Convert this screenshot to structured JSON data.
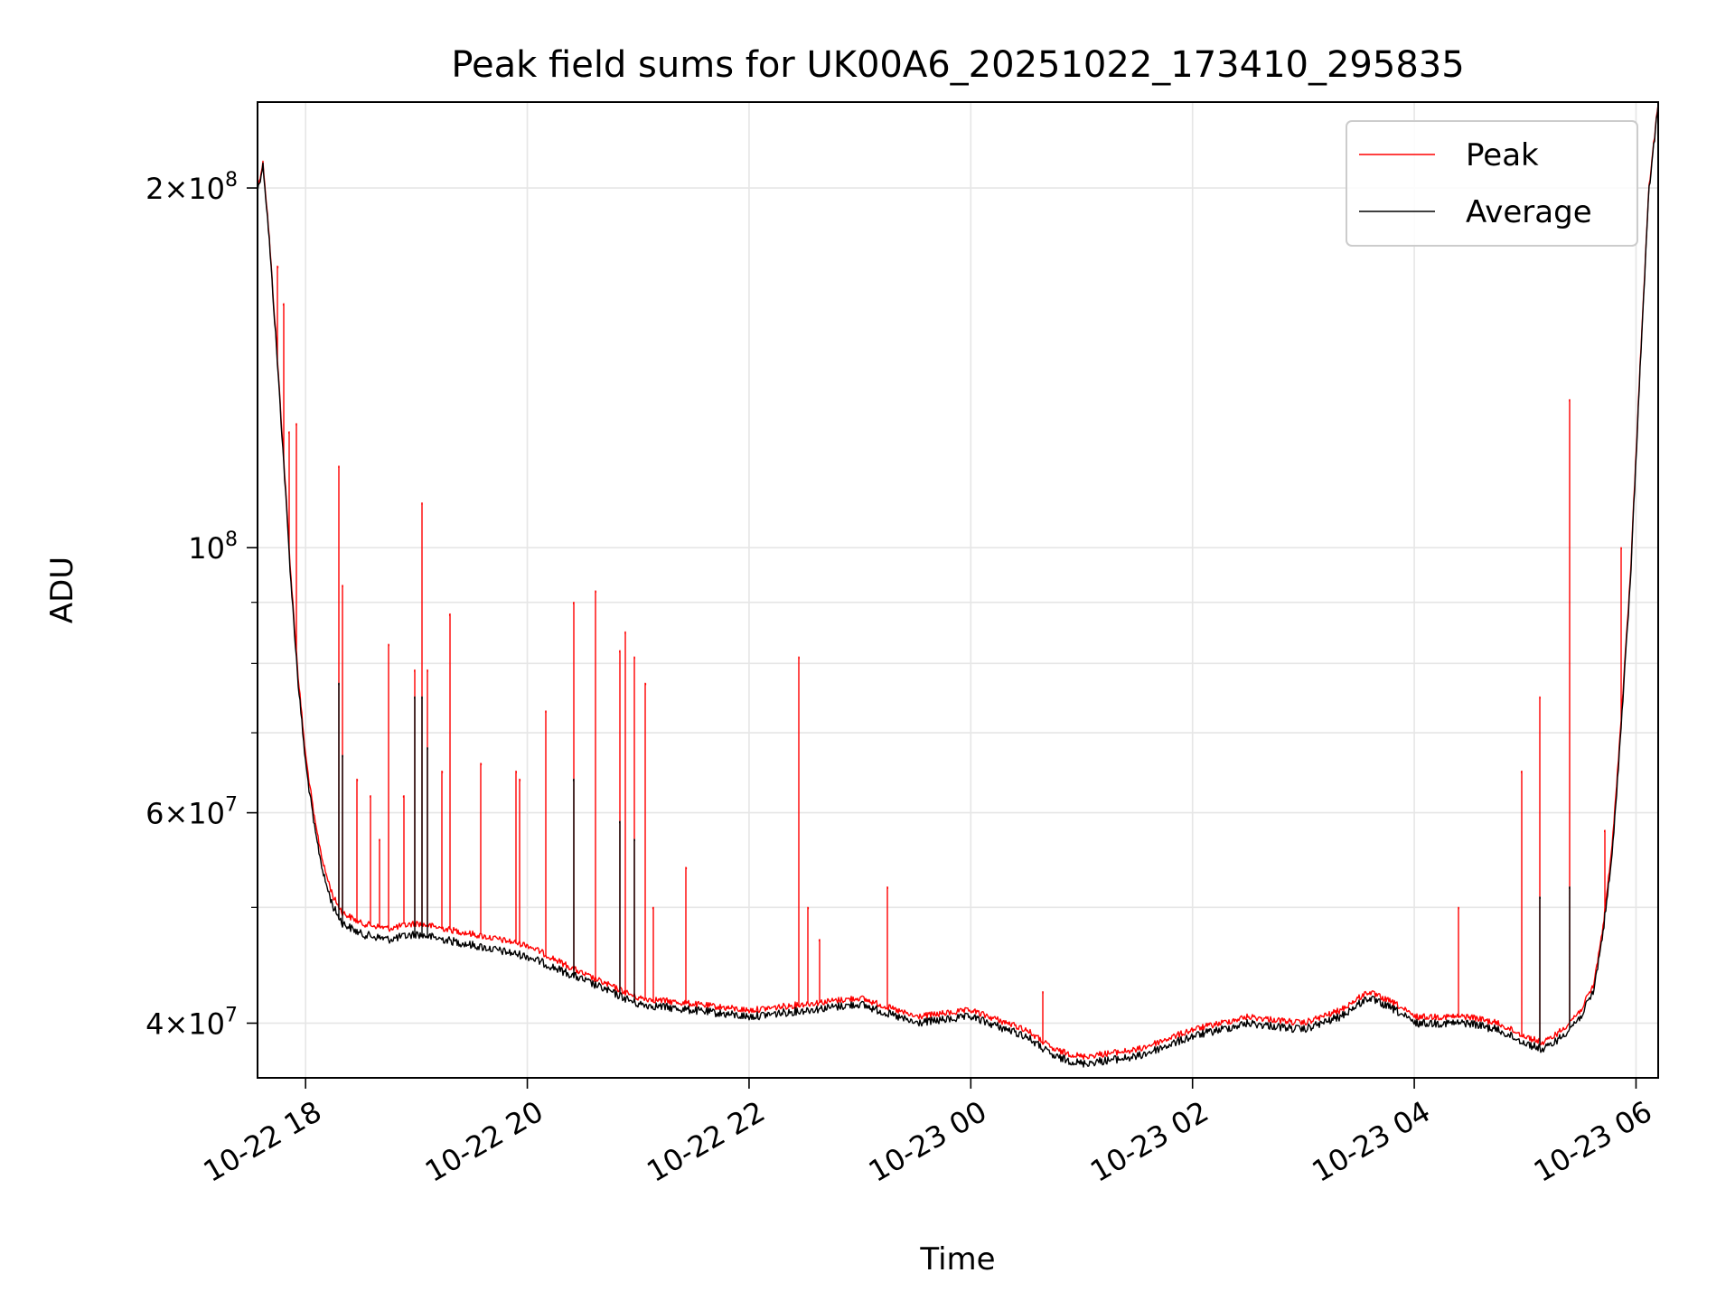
{
  "chart_data": {
    "type": "line",
    "title": "Peak field sums for UK00A6_20251022_173410_295835",
    "xlabel": "Time",
    "ylabel": "ADU",
    "y_scale": "log",
    "x_range": [
      "2025-10-22 17:34",
      "2025-10-23 06:12"
    ],
    "ylim": [
      36000000,
      236000000
    ],
    "x_ticks": [
      {
        "value": "2025-10-22 18:00",
        "label": "10-22 18"
      },
      {
        "value": "2025-10-22 20:00",
        "label": "10-22 20"
      },
      {
        "value": "2025-10-22 22:00",
        "label": "10-22 22"
      },
      {
        "value": "2025-10-23 00:00",
        "label": "10-23 00"
      },
      {
        "value": "2025-10-23 02:00",
        "label": "10-23 02"
      },
      {
        "value": "2025-10-23 04:00",
        "label": "10-23 04"
      },
      {
        "value": "2025-10-23 06:00",
        "label": "10-23 06"
      }
    ],
    "y_ticks": [
      {
        "value": 40000000,
        "mantissa": "4",
        "exp": "7"
      },
      {
        "value": 60000000,
        "mantissa": "6",
        "exp": "7"
      },
      {
        "value": 100000000,
        "mantissa": "",
        "exp": "8"
      },
      {
        "value": 200000000,
        "mantissa": "2",
        "exp": "8"
      }
    ],
    "y_minor_ticks": [
      50000000,
      70000000,
      80000000,
      90000000
    ],
    "grid": true,
    "legend_position": "top-right",
    "series": [
      {
        "name": "Peak",
        "color": "#ff0000",
        "x": [
          "2025-10-22 17:34",
          "2025-10-22 17:37",
          "2025-10-22 17:40",
          "2025-10-22 17:44",
          "2025-10-22 17:48",
          "2025-10-22 17:52",
          "2025-10-22 17:56",
          "2025-10-22 18:00",
          "2025-10-22 18:05",
          "2025-10-22 18:10",
          "2025-10-22 18:15",
          "2025-10-22 18:20",
          "2025-10-22 18:30",
          "2025-10-22 18:45",
          "2025-10-22 19:00",
          "2025-10-22 19:30",
          "2025-10-22 20:00",
          "2025-10-22 20:30",
          "2025-10-22 21:00",
          "2025-10-22 21:30",
          "2025-10-22 22:00",
          "2025-10-22 22:30",
          "2025-10-22 23:00",
          "2025-10-22 23:30",
          "2025-10-23 00:00",
          "2025-10-23 00:30",
          "2025-10-23 00:45",
          "2025-10-23 01:00",
          "2025-10-23 01:30",
          "2025-10-23 02:00",
          "2025-10-23 02:30",
          "2025-10-23 03:00",
          "2025-10-23 03:20",
          "2025-10-23 03:35",
          "2025-10-23 03:50",
          "2025-10-23 04:00",
          "2025-10-23 04:30",
          "2025-10-23 04:45",
          "2025-10-23 05:00",
          "2025-10-23 05:10",
          "2025-10-23 05:20",
          "2025-10-23 05:30",
          "2025-10-23 05:37",
          "2025-10-23 05:42",
          "2025-10-23 05:47",
          "2025-10-23 05:52",
          "2025-10-23 05:57",
          "2025-10-23 06:02",
          "2025-10-23 06:07",
          "2025-10-23 06:12"
        ],
        "y": [
          200000000,
          210000000,
          185000000,
          150000000,
          120000000,
          95000000,
          78000000,
          67000000,
          59000000,
          54000000,
          51000000,
          49500000,
          48500000,
          48000000,
          48500000,
          47500000,
          46500000,
          44000000,
          42000000,
          41500000,
          41000000,
          41500000,
          42000000,
          40500000,
          41000000,
          39500000,
          38000000,
          37500000,
          38000000,
          39500000,
          40500000,
          40000000,
          41000000,
          42500000,
          41500000,
          40500000,
          40500000,
          40000000,
          39000000,
          38500000,
          39500000,
          41000000,
          43000000,
          48000000,
          56000000,
          72000000,
          95000000,
          140000000,
          200000000,
          236000000
        ],
        "spikes": [
          {
            "x": "2025-10-22 17:45",
            "y": 172000000
          },
          {
            "x": "2025-10-22 17:48",
            "y": 160000000
          },
          {
            "x": "2025-10-22 17:51",
            "y": 125000000
          },
          {
            "x": "2025-10-22 17:55",
            "y": 127000000
          },
          {
            "x": "2025-10-22 18:18",
            "y": 117000000
          },
          {
            "x": "2025-10-22 18:20",
            "y": 93000000
          },
          {
            "x": "2025-10-22 18:28",
            "y": 64000000
          },
          {
            "x": "2025-10-22 18:35",
            "y": 62000000
          },
          {
            "x": "2025-10-22 18:40",
            "y": 57000000
          },
          {
            "x": "2025-10-22 18:45",
            "y": 83000000
          },
          {
            "x": "2025-10-22 18:53",
            "y": 62000000
          },
          {
            "x": "2025-10-22 18:59",
            "y": 79000000
          },
          {
            "x": "2025-10-22 19:03",
            "y": 109000000
          },
          {
            "x": "2025-10-22 19:06",
            "y": 79000000
          },
          {
            "x": "2025-10-22 19:14",
            "y": 65000000
          },
          {
            "x": "2025-10-22 19:18",
            "y": 88000000
          },
          {
            "x": "2025-10-22 19:35",
            "y": 66000000
          },
          {
            "x": "2025-10-22 19:54",
            "y": 65000000
          },
          {
            "x": "2025-10-22 19:56",
            "y": 64000000
          },
          {
            "x": "2025-10-22 20:10",
            "y": 73000000
          },
          {
            "x": "2025-10-22 20:25",
            "y": 90000000
          },
          {
            "x": "2025-10-22 20:37",
            "y": 92000000
          },
          {
            "x": "2025-10-22 20:50",
            "y": 82000000
          },
          {
            "x": "2025-10-22 20:53",
            "y": 85000000
          },
          {
            "x": "2025-10-22 20:58",
            "y": 81000000
          },
          {
            "x": "2025-10-22 21:04",
            "y": 77000000
          },
          {
            "x": "2025-10-22 21:08",
            "y": 50000000
          },
          {
            "x": "2025-10-22 21:26",
            "y": 54000000
          },
          {
            "x": "2025-10-22 22:27",
            "y": 81000000
          },
          {
            "x": "2025-10-22 22:32",
            "y": 50000000
          },
          {
            "x": "2025-10-22 22:38",
            "y": 47000000
          },
          {
            "x": "2025-10-22 23:15",
            "y": 52000000
          },
          {
            "x": "2025-10-23 00:39",
            "y": 42500000
          },
          {
            "x": "2025-10-23 04:24",
            "y": 50000000
          },
          {
            "x": "2025-10-23 04:58",
            "y": 65000000
          },
          {
            "x": "2025-10-23 05:08",
            "y": 75000000
          },
          {
            "x": "2025-10-23 05:24",
            "y": 133000000
          },
          {
            "x": "2025-10-23 05:43",
            "y": 58000000
          },
          {
            "x": "2025-10-23 05:52",
            "y": 100000000
          }
        ]
      },
      {
        "name": "Average",
        "color": "#000000",
        "x": [
          "2025-10-22 17:34",
          "2025-10-22 17:37",
          "2025-10-22 17:40",
          "2025-10-22 17:44",
          "2025-10-22 17:48",
          "2025-10-22 17:52",
          "2025-10-22 17:56",
          "2025-10-22 18:00",
          "2025-10-22 18:05",
          "2025-10-22 18:10",
          "2025-10-22 18:15",
          "2025-10-22 18:20",
          "2025-10-22 18:30",
          "2025-10-22 18:45",
          "2025-10-22 19:00",
          "2025-10-22 19:30",
          "2025-10-22 20:00",
          "2025-10-22 20:30",
          "2025-10-22 21:00",
          "2025-10-22 21:30",
          "2025-10-22 22:00",
          "2025-10-22 22:30",
          "2025-10-22 23:00",
          "2025-10-22 23:30",
          "2025-10-23 00:00",
          "2025-10-23 00:30",
          "2025-10-23 00:45",
          "2025-10-23 01:00",
          "2025-10-23 01:30",
          "2025-10-23 02:00",
          "2025-10-23 02:30",
          "2025-10-23 03:00",
          "2025-10-23 03:20",
          "2025-10-23 03:35",
          "2025-10-23 03:50",
          "2025-10-23 04:00",
          "2025-10-23 04:30",
          "2025-10-23 04:45",
          "2025-10-23 05:00",
          "2025-10-23 05:10",
          "2025-10-23 05:20",
          "2025-10-23 05:30",
          "2025-10-23 05:37",
          "2025-10-23 05:42",
          "2025-10-23 05:47",
          "2025-10-23 05:52",
          "2025-10-23 05:57",
          "2025-10-23 06:02",
          "2025-10-23 06:07",
          "2025-10-23 06:12"
        ],
        "y": [
          199000000,
          209000000,
          184000000,
          149000000,
          119000000,
          94000000,
          77000000,
          66000000,
          58000000,
          53000000,
          50000000,
          48500000,
          47500000,
          47000000,
          47500000,
          46500000,
          45500000,
          43500000,
          41500000,
          41000000,
          40500000,
          41000000,
          41500000,
          40000000,
          40500000,
          39000000,
          37500000,
          37000000,
          37500000,
          39000000,
          40000000,
          39500000,
          40500000,
          42000000,
          41000000,
          40000000,
          40000000,
          39500000,
          38500000,
          38000000,
          39000000,
          40500000,
          42500000,
          47500000,
          55000000,
          71000000,
          94000000,
          139000000,
          199000000,
          235000000
        ],
        "spikes": [
          {
            "x": "2025-10-22 18:18",
            "y": 77000000
          },
          {
            "x": "2025-10-22 18:20",
            "y": 67000000
          },
          {
            "x": "2025-10-22 18:59",
            "y": 75000000
          },
          {
            "x": "2025-10-22 19:03",
            "y": 75000000
          },
          {
            "x": "2025-10-22 19:06",
            "y": 68000000
          },
          {
            "x": "2025-10-22 20:25",
            "y": 64000000
          },
          {
            "x": "2025-10-22 20:50",
            "y": 59000000
          },
          {
            "x": "2025-10-22 20:58",
            "y": 57000000
          },
          {
            "x": "2025-10-23 05:08",
            "y": 51000000
          },
          {
            "x": "2025-10-23 05:24",
            "y": 52000000
          }
        ]
      }
    ]
  }
}
